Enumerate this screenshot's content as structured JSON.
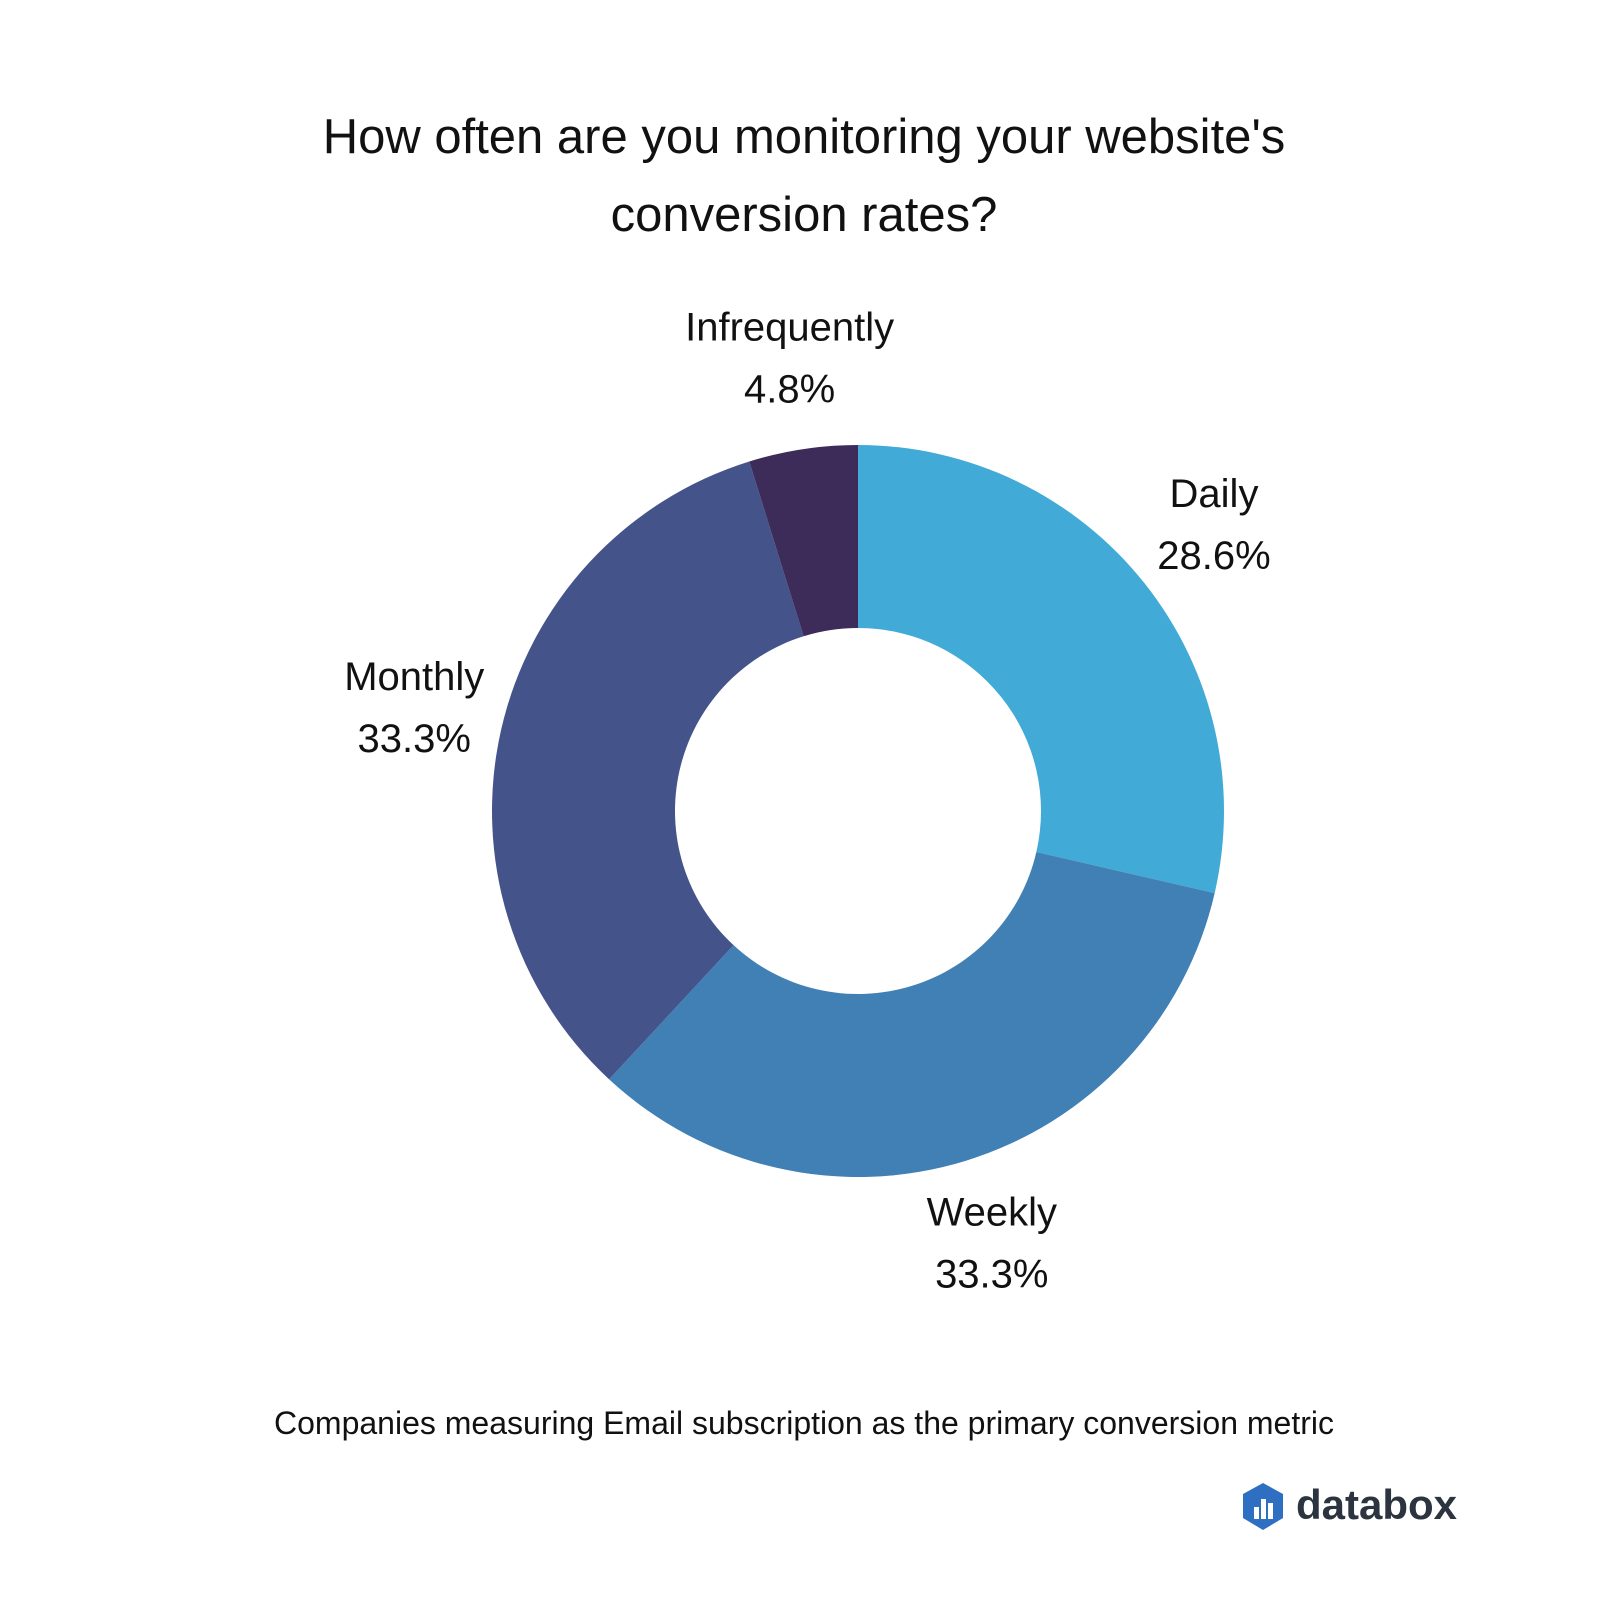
{
  "chart_data": {
    "type": "donut",
    "title": "How often are you monitoring your website's conversion rates?",
    "categories": [
      "Daily",
      "Weekly",
      "Monthly",
      "Infrequently"
    ],
    "values": [
      28.6,
      33.3,
      33.3,
      4.8
    ],
    "value_labels": [
      "28.6%",
      "33.3%",
      "33.3%",
      "4.8%"
    ],
    "colors": [
      "#42aad6",
      "#4080b5",
      "#45538b",
      "#3d2b5a"
    ],
    "note": "Companies measuring Email subscription as the primary conversion metric",
    "logo": "databox"
  }
}
